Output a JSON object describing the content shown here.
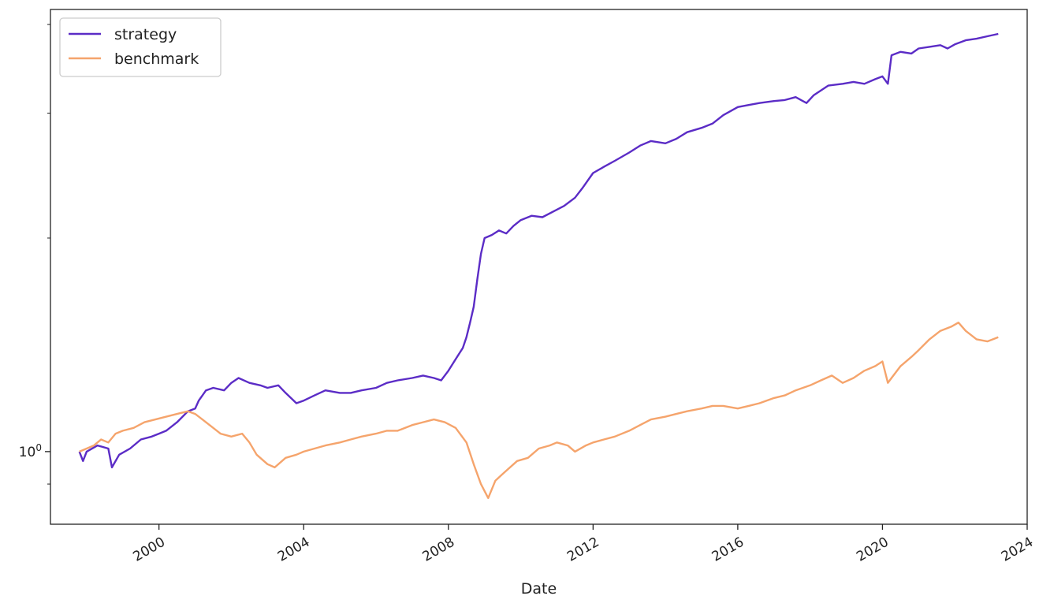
{
  "chart_data": {
    "type": "line",
    "title": "",
    "xlabel": "Date",
    "ylabel": "",
    "yscale": "log",
    "grid": false,
    "legend_position": "top-left",
    "xlim": [
      1997.0,
      2024.0
    ],
    "ylim": [
      0.79,
      4.2
    ],
    "x_ticks": [
      {
        "value": 2000,
        "label": "2000"
      },
      {
        "value": 2004,
        "label": "2004"
      },
      {
        "value": 2008,
        "label": "2008"
      },
      {
        "value": 2012,
        "label": "2012"
      },
      {
        "value": 2016,
        "label": "2016"
      },
      {
        "value": 2020,
        "label": "2020"
      },
      {
        "value": 2024,
        "label": "2024"
      }
    ],
    "y_major_ticks": [
      1.0
    ],
    "y_major_tick_base": "10",
    "y_major_tick_exponent": "0",
    "y_minor_ticks": [
      0.9,
      2,
      3,
      4
    ],
    "series": [
      {
        "name": "strategy",
        "color": "#5b2cc6",
        "points": [
          [
            1997.8,
            1.0
          ],
          [
            1997.9,
            0.97
          ],
          [
            1998.0,
            1.0
          ],
          [
            1998.3,
            1.02
          ],
          [
            1998.6,
            1.01
          ],
          [
            1998.7,
            0.95
          ],
          [
            1998.9,
            0.99
          ],
          [
            1999.2,
            1.01
          ],
          [
            1999.5,
            1.04
          ],
          [
            1999.8,
            1.05
          ],
          [
            2000.0,
            1.06
          ],
          [
            2000.2,
            1.07
          ],
          [
            2000.5,
            1.1
          ],
          [
            2000.8,
            1.14
          ],
          [
            2001.0,
            1.15
          ],
          [
            2001.1,
            1.18
          ],
          [
            2001.3,
            1.22
          ],
          [
            2001.5,
            1.23
          ],
          [
            2001.8,
            1.22
          ],
          [
            2002.0,
            1.25
          ],
          [
            2002.2,
            1.27
          ],
          [
            2002.5,
            1.25
          ],
          [
            2002.8,
            1.24
          ],
          [
            2003.0,
            1.23
          ],
          [
            2003.3,
            1.24
          ],
          [
            2003.5,
            1.21
          ],
          [
            2003.8,
            1.17
          ],
          [
            2004.0,
            1.18
          ],
          [
            2004.3,
            1.2
          ],
          [
            2004.6,
            1.22
          ],
          [
            2005.0,
            1.21
          ],
          [
            2005.3,
            1.21
          ],
          [
            2005.6,
            1.22
          ],
          [
            2006.0,
            1.23
          ],
          [
            2006.3,
            1.25
          ],
          [
            2006.6,
            1.26
          ],
          [
            2007.0,
            1.27
          ],
          [
            2007.3,
            1.28
          ],
          [
            2007.6,
            1.27
          ],
          [
            2007.8,
            1.26
          ],
          [
            2008.0,
            1.3
          ],
          [
            2008.2,
            1.35
          ],
          [
            2008.4,
            1.4
          ],
          [
            2008.5,
            1.45
          ],
          [
            2008.6,
            1.52
          ],
          [
            2008.7,
            1.6
          ],
          [
            2008.8,
            1.75
          ],
          [
            2008.9,
            1.9
          ],
          [
            2009.0,
            2.0
          ],
          [
            2009.2,
            2.02
          ],
          [
            2009.4,
            2.05
          ],
          [
            2009.6,
            2.03
          ],
          [
            2009.8,
            2.08
          ],
          [
            2010.0,
            2.12
          ],
          [
            2010.3,
            2.15
          ],
          [
            2010.6,
            2.14
          ],
          [
            2010.9,
            2.18
          ],
          [
            2011.2,
            2.22
          ],
          [
            2011.5,
            2.28
          ],
          [
            2011.7,
            2.35
          ],
          [
            2012.0,
            2.47
          ],
          [
            2012.3,
            2.52
          ],
          [
            2012.6,
            2.57
          ],
          [
            2013.0,
            2.64
          ],
          [
            2013.3,
            2.7
          ],
          [
            2013.6,
            2.74
          ],
          [
            2014.0,
            2.72
          ],
          [
            2014.3,
            2.76
          ],
          [
            2014.6,
            2.82
          ],
          [
            2015.0,
            2.86
          ],
          [
            2015.3,
            2.9
          ],
          [
            2015.6,
            2.98
          ],
          [
            2016.0,
            3.06
          ],
          [
            2016.3,
            3.08
          ],
          [
            2016.6,
            3.1
          ],
          [
            2017.0,
            3.12
          ],
          [
            2017.3,
            3.13
          ],
          [
            2017.6,
            3.16
          ],
          [
            2017.9,
            3.1
          ],
          [
            2018.1,
            3.18
          ],
          [
            2018.5,
            3.28
          ],
          [
            2018.9,
            3.3
          ],
          [
            2019.2,
            3.32
          ],
          [
            2019.5,
            3.3
          ],
          [
            2019.8,
            3.35
          ],
          [
            2020.0,
            3.38
          ],
          [
            2020.15,
            3.3
          ],
          [
            2020.25,
            3.62
          ],
          [
            2020.5,
            3.66
          ],
          [
            2020.8,
            3.64
          ],
          [
            2021.0,
            3.7
          ],
          [
            2021.3,
            3.72
          ],
          [
            2021.6,
            3.74
          ],
          [
            2021.8,
            3.7
          ],
          [
            2022.0,
            3.75
          ],
          [
            2022.3,
            3.8
          ],
          [
            2022.6,
            3.82
          ],
          [
            2022.9,
            3.85
          ],
          [
            2023.2,
            3.88
          ]
        ]
      },
      {
        "name": "benchmark",
        "color": "#f5a46c",
        "points": [
          [
            1997.8,
            1.0
          ],
          [
            1998.0,
            1.01
          ],
          [
            1998.2,
            1.02
          ],
          [
            1998.4,
            1.04
          ],
          [
            1998.6,
            1.03
          ],
          [
            1998.8,
            1.06
          ],
          [
            1999.0,
            1.07
          ],
          [
            1999.3,
            1.08
          ],
          [
            1999.6,
            1.1
          ],
          [
            1999.9,
            1.11
          ],
          [
            2000.2,
            1.12
          ],
          [
            2000.5,
            1.13
          ],
          [
            2000.8,
            1.14
          ],
          [
            2001.0,
            1.13
          ],
          [
            2001.2,
            1.11
          ],
          [
            2001.5,
            1.08
          ],
          [
            2001.7,
            1.06
          ],
          [
            2002.0,
            1.05
          ],
          [
            2002.3,
            1.06
          ],
          [
            2002.5,
            1.03
          ],
          [
            2002.7,
            0.99
          ],
          [
            2003.0,
            0.96
          ],
          [
            2003.2,
            0.95
          ],
          [
            2003.5,
            0.98
          ],
          [
            2003.8,
            0.99
          ],
          [
            2004.0,
            1.0
          ],
          [
            2004.3,
            1.01
          ],
          [
            2004.6,
            1.02
          ],
          [
            2005.0,
            1.03
          ],
          [
            2005.3,
            1.04
          ],
          [
            2005.6,
            1.05
          ],
          [
            2006.0,
            1.06
          ],
          [
            2006.3,
            1.07
          ],
          [
            2006.6,
            1.07
          ],
          [
            2007.0,
            1.09
          ],
          [
            2007.3,
            1.1
          ],
          [
            2007.6,
            1.11
          ],
          [
            2007.9,
            1.1
          ],
          [
            2008.2,
            1.08
          ],
          [
            2008.5,
            1.03
          ],
          [
            2008.7,
            0.96
          ],
          [
            2008.9,
            0.9
          ],
          [
            2009.1,
            0.86
          ],
          [
            2009.3,
            0.91
          ],
          [
            2009.6,
            0.94
          ],
          [
            2009.9,
            0.97
          ],
          [
            2010.2,
            0.98
          ],
          [
            2010.5,
            1.01
          ],
          [
            2010.8,
            1.02
          ],
          [
            2011.0,
            1.03
          ],
          [
            2011.3,
            1.02
          ],
          [
            2011.5,
            1.0
          ],
          [
            2011.8,
            1.02
          ],
          [
            2012.0,
            1.03
          ],
          [
            2012.3,
            1.04
          ],
          [
            2012.6,
            1.05
          ],
          [
            2013.0,
            1.07
          ],
          [
            2013.3,
            1.09
          ],
          [
            2013.6,
            1.11
          ],
          [
            2014.0,
            1.12
          ],
          [
            2014.3,
            1.13
          ],
          [
            2014.6,
            1.14
          ],
          [
            2015.0,
            1.15
          ],
          [
            2015.3,
            1.16
          ],
          [
            2015.6,
            1.16
          ],
          [
            2016.0,
            1.15
          ],
          [
            2016.3,
            1.16
          ],
          [
            2016.6,
            1.17
          ],
          [
            2017.0,
            1.19
          ],
          [
            2017.3,
            1.2
          ],
          [
            2017.6,
            1.22
          ],
          [
            2018.0,
            1.24
          ],
          [
            2018.3,
            1.26
          ],
          [
            2018.6,
            1.28
          ],
          [
            2018.9,
            1.25
          ],
          [
            2019.2,
            1.27
          ],
          [
            2019.5,
            1.3
          ],
          [
            2019.8,
            1.32
          ],
          [
            2020.0,
            1.34
          ],
          [
            2020.15,
            1.25
          ],
          [
            2020.25,
            1.27
          ],
          [
            2020.5,
            1.32
          ],
          [
            2020.8,
            1.36
          ],
          [
            2021.0,
            1.39
          ],
          [
            2021.3,
            1.44
          ],
          [
            2021.6,
            1.48
          ],
          [
            2021.9,
            1.5
          ],
          [
            2022.1,
            1.52
          ],
          [
            2022.3,
            1.48
          ],
          [
            2022.6,
            1.44
          ],
          [
            2022.9,
            1.43
          ],
          [
            2023.2,
            1.45
          ]
        ]
      }
    ]
  }
}
